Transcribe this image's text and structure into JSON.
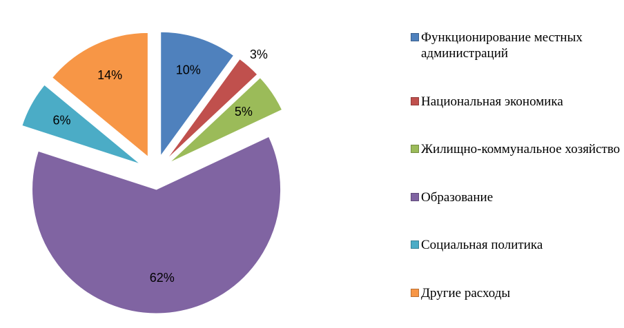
{
  "chart_data": {
    "type": "pie",
    "categories": [
      "Функционирование местных администраций",
      "Национальная экономика",
      "Жилищно-коммунальное хозяйство",
      "Образование",
      "Социальная политика",
      "Другие расходы"
    ],
    "values": [
      10,
      3,
      5,
      62,
      6,
      14
    ],
    "value_labels": [
      "10%",
      "3%",
      "5%",
      "62%",
      "6%",
      "14%"
    ],
    "colors": [
      "#4f81bd",
      "#c0504d",
      "#9bbb59",
      "#8064a2",
      "#4bacc6",
      "#f79646"
    ],
    "legend": "right"
  }
}
